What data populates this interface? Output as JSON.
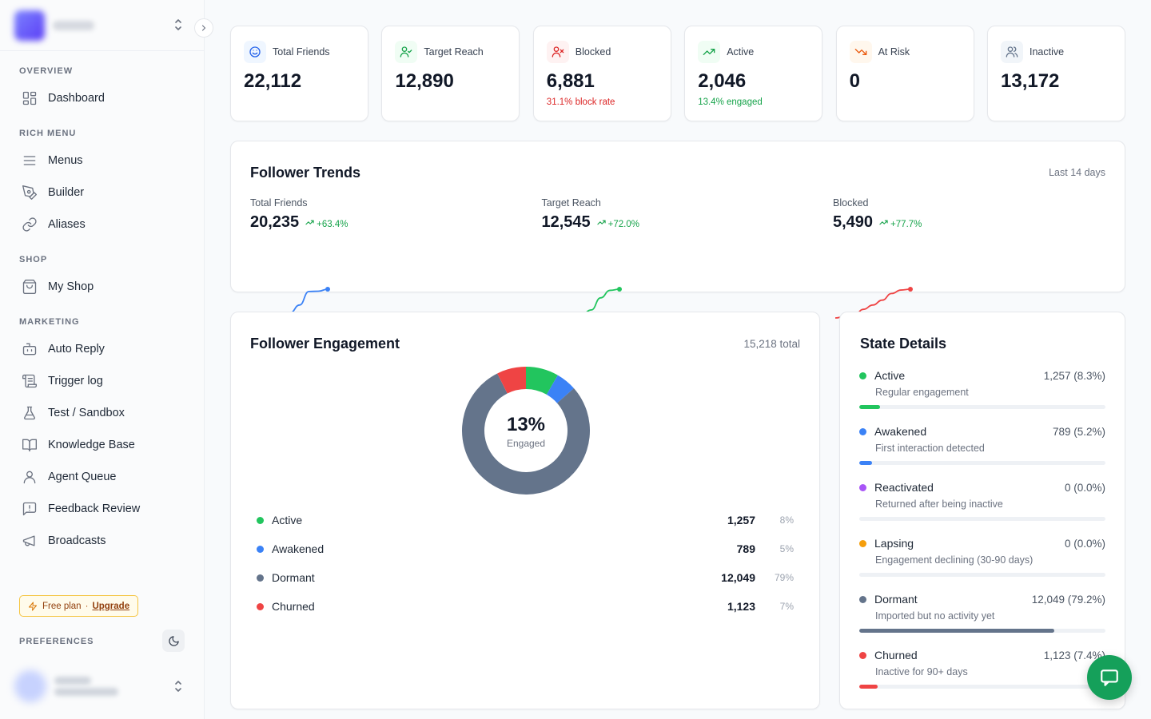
{
  "sidebar": {
    "sections": [
      {
        "label": "OVERVIEW",
        "items": [
          {
            "label": "Dashboard",
            "icon": "dashboard-icon"
          }
        ]
      },
      {
        "label": "RICH MENU",
        "items": [
          {
            "label": "Menus",
            "icon": "menu-icon"
          },
          {
            "label": "Builder",
            "icon": "pen-tool-icon"
          },
          {
            "label": "Aliases",
            "icon": "link-icon"
          }
        ]
      },
      {
        "label": "SHOP",
        "items": [
          {
            "label": "My Shop",
            "icon": "shopping-bag-icon"
          }
        ]
      },
      {
        "label": "MARKETING",
        "items": [
          {
            "label": "Auto Reply",
            "icon": "bot-icon"
          },
          {
            "label": "Trigger log",
            "icon": "scroll-icon"
          },
          {
            "label": "Test / Sandbox",
            "icon": "flask-icon"
          },
          {
            "label": "Knowledge Base",
            "icon": "book-icon"
          },
          {
            "label": "Agent Queue",
            "icon": "user-icon"
          },
          {
            "label": "Feedback Review",
            "icon": "message-alert-icon"
          },
          {
            "label": "Broadcasts",
            "icon": "megaphone-icon"
          }
        ]
      }
    ],
    "plan": {
      "name": "Free plan",
      "separator": "·",
      "upgrade": "Upgrade"
    },
    "preferences_label": "PREFERENCES"
  },
  "stats": [
    {
      "label": "Total Friends",
      "value": "22,112",
      "sub": "",
      "icon": "smile-icon",
      "color": "#2563eb",
      "bg": "#eff6ff"
    },
    {
      "label": "Target Reach",
      "value": "12,890",
      "sub": "",
      "icon": "user-check-icon",
      "color": "#16a34a",
      "bg": "#f0fdf4"
    },
    {
      "label": "Blocked",
      "value": "6,881",
      "sub": "31.1% block rate",
      "subColor": "#dc2626",
      "icon": "user-x-icon",
      "color": "#dc2626",
      "bg": "#fef2f2"
    },
    {
      "label": "Active",
      "value": "2,046",
      "sub": "13.4% engaged",
      "subColor": "#16a34a",
      "icon": "trending-up-icon",
      "color": "#16a34a",
      "bg": "#f0fdf4"
    },
    {
      "label": "At Risk",
      "value": "0",
      "sub": "",
      "icon": "trending-down-icon",
      "color": "#ea580c",
      "bg": "#fff7ed"
    },
    {
      "label": "Inactive",
      "value": "13,172",
      "sub": "",
      "icon": "users-icon",
      "color": "#64748b",
      "bg": "#f1f5f9"
    }
  ],
  "trends": {
    "title": "Follower Trends",
    "period": "Last 14 days",
    "items": [
      {
        "label": "Total Friends",
        "value": "20,235",
        "delta": "+63.4%",
        "color": "#3b82f6",
        "points": [
          0,
          0.06,
          0.08,
          0.1,
          0.18,
          0.45,
          0.92,
          0.93,
          1
        ]
      },
      {
        "label": "Target Reach",
        "value": "12,545",
        "delta": "+72.0%",
        "color": "#22c55e",
        "points": [
          0,
          0.08,
          0.18,
          0.14,
          0.12,
          0.28,
          0.7,
          0.96,
          1
        ]
      },
      {
        "label": "Blocked",
        "value": "5,490",
        "delta": "+77.7%",
        "color": "#ef4444",
        "points": [
          0,
          0.05,
          0.08,
          0.3,
          0.45,
          0.62,
          0.85,
          0.97,
          1
        ]
      }
    ]
  },
  "engagement": {
    "title": "Follower Engagement",
    "total": "15,218 total",
    "center_value": "13%",
    "center_label": "Engaged",
    "items": [
      {
        "name": "Active",
        "value": "1,257",
        "pct": "8%",
        "share": 8.3,
        "color": "#22c55e"
      },
      {
        "name": "Awakened",
        "value": "789",
        "pct": "5%",
        "share": 5.2,
        "color": "#3b82f6"
      },
      {
        "name": "Dormant",
        "value": "12,049",
        "pct": "79%",
        "share": 79.2,
        "color": "#64748b"
      },
      {
        "name": "Churned",
        "value": "1,123",
        "pct": "7%",
        "share": 7.4,
        "color": "#ef4444"
      }
    ]
  },
  "states": {
    "title": "State Details",
    "items": [
      {
        "name": "Active",
        "value": "1,257 (8.3%)",
        "desc": "Regular engagement",
        "fraction": 0.083,
        "color": "#22c55e"
      },
      {
        "name": "Awakened",
        "value": "789 (5.2%)",
        "desc": "First interaction detected",
        "fraction": 0.052,
        "color": "#3b82f6"
      },
      {
        "name": "Reactivated",
        "value": "0 (0.0%)",
        "desc": "Returned after being inactive",
        "fraction": 0,
        "color": "#a855f7"
      },
      {
        "name": "Lapsing",
        "value": "0 (0.0%)",
        "desc": "Engagement declining (30-90 days)",
        "fraction": 0,
        "color": "#f59e0b"
      },
      {
        "name": "Dormant",
        "value": "12,049 (79.2%)",
        "desc": "Imported but no activity yet",
        "fraction": 0.792,
        "color": "#64748b"
      },
      {
        "name": "Churned",
        "value": "1,123 (7.4%)",
        "desc": "Inactive for 90+ days",
        "fraction": 0.074,
        "color": "#ef4444"
      }
    ]
  }
}
